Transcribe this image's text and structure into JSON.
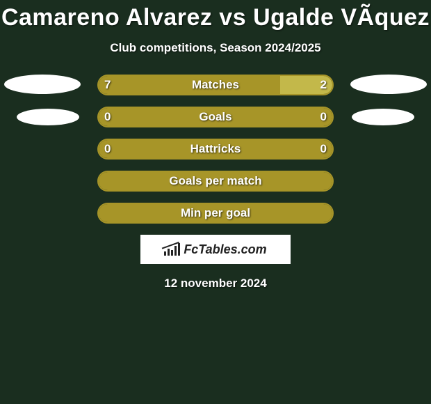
{
  "background_color": "#1a2e1f",
  "title": "Camareno Alvarez vs Ugalde VÃ­quez",
  "title_fontsize": 34,
  "subtitle": "Club competitions, Season 2024/2025",
  "subtitle_fontsize": 17,
  "left_color": "#a79528",
  "right_color": "#c3b84a",
  "border_color": "#a79528",
  "fill_when_zero": "#a79528",
  "ellipse_color": "#ffffff",
  "rows": [
    {
      "label": "Matches",
      "left_value": "7",
      "right_value": "2",
      "left_pct": 77.8,
      "right_pct": 22.2,
      "show_left_ellipse": true,
      "show_right_ellipse": true,
      "ellipse_top": 0
    },
    {
      "label": "Goals",
      "left_value": "0",
      "right_value": "0",
      "left_pct": 0,
      "right_pct": 0,
      "show_left_ellipse": true,
      "show_right_ellipse": true,
      "ellipse_top": 0
    },
    {
      "label": "Hattricks",
      "left_value": "0",
      "right_value": "0",
      "left_pct": 0,
      "right_pct": 0,
      "show_left_ellipse": false,
      "show_right_ellipse": false,
      "ellipse_top": 0
    },
    {
      "label": "Goals per match",
      "left_value": "",
      "right_value": "",
      "left_pct": 0,
      "right_pct": 0,
      "show_left_ellipse": false,
      "show_right_ellipse": false,
      "ellipse_top": 0
    },
    {
      "label": "Min per goal",
      "left_value": "",
      "right_value": "",
      "left_pct": 0,
      "right_pct": 0,
      "show_left_ellipse": false,
      "show_right_ellipse": false,
      "ellipse_top": 0
    }
  ],
  "logo_text": "FcTables.com",
  "date": "12 november 2024"
}
